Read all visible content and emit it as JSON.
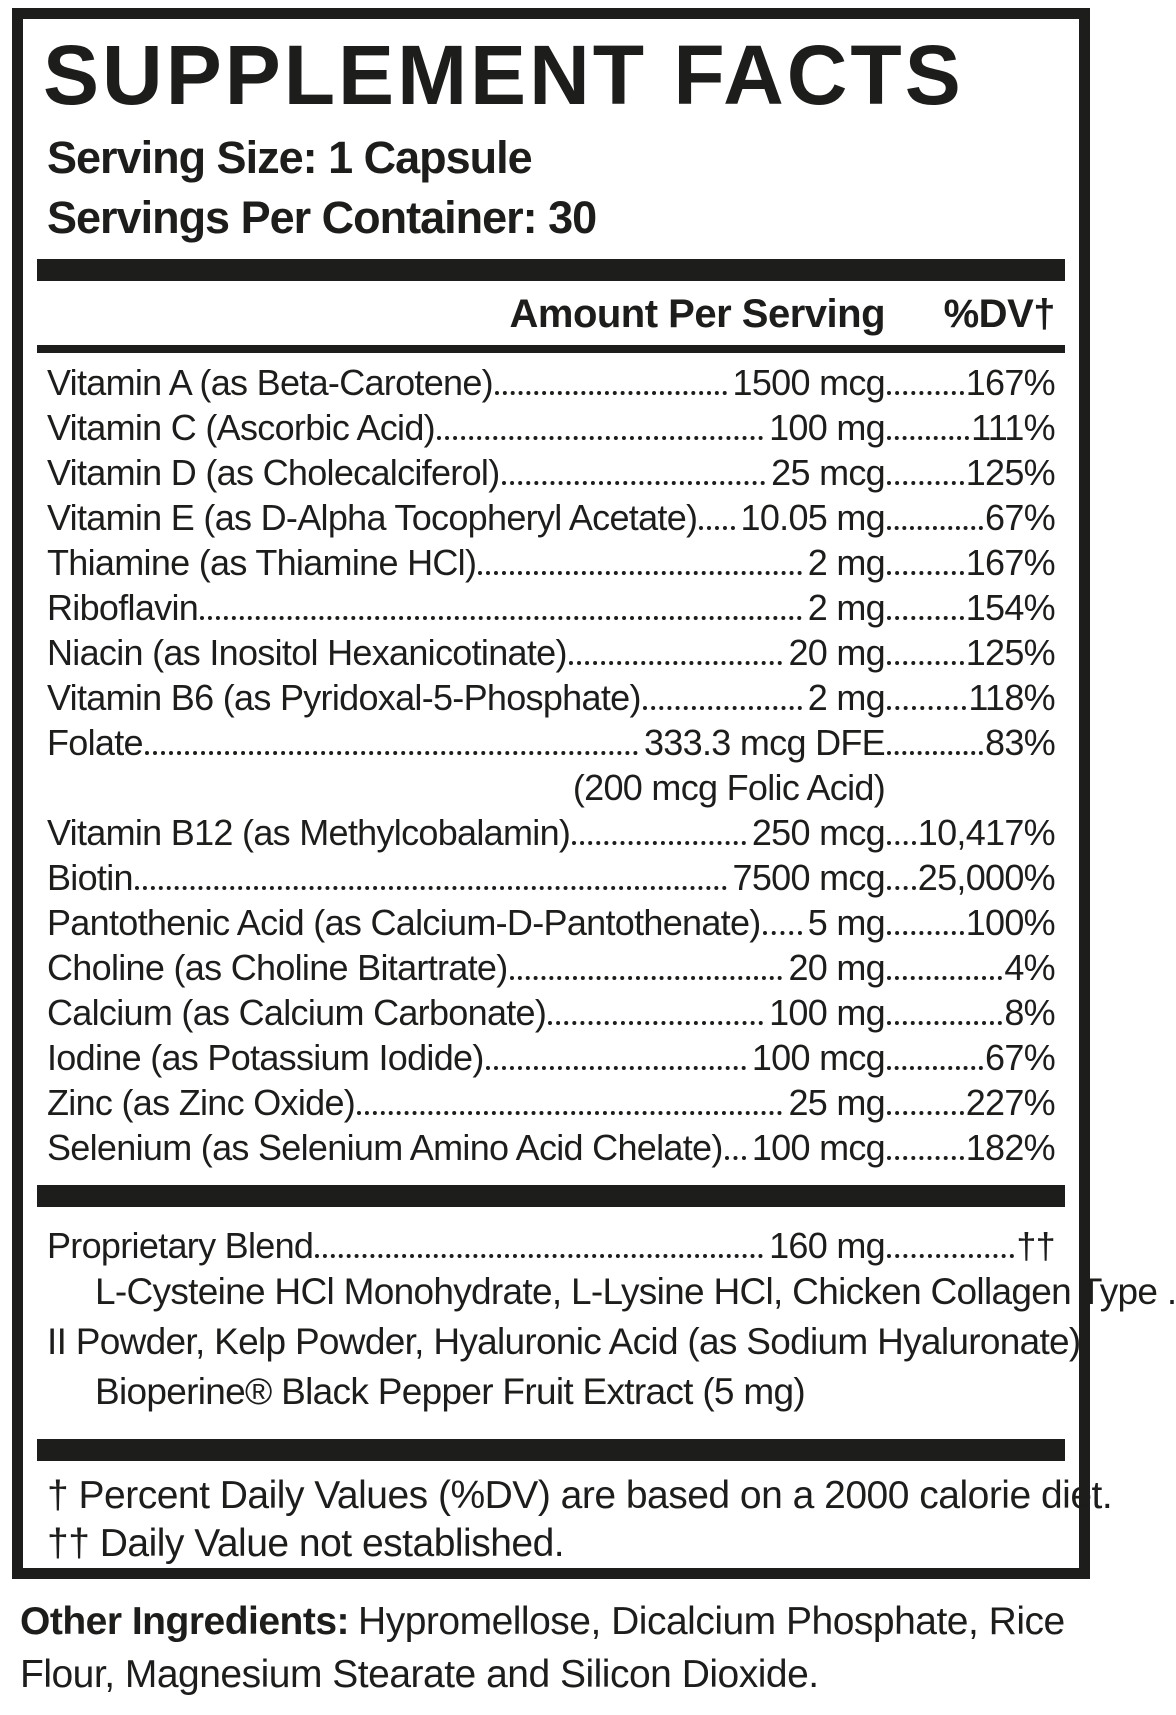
{
  "title": "SUPPLEMENT FACTS",
  "serving": {
    "size_label": "Serving Size: 1 Capsule",
    "per_container_label": "Servings Per Container: 30"
  },
  "columns": {
    "amount": "Amount Per Serving",
    "dv": "%DV†"
  },
  "nutrients": [
    {
      "name": "Vitamin A (as Beta-Carotene)",
      "amount": "1500 mcg",
      "dv": "167%"
    },
    {
      "name": "Vitamin C (Ascorbic Acid)",
      "amount": "100 mg",
      "dv": "111%"
    },
    {
      "name": "Vitamin D (as Cholecalciferol)",
      "amount": "25 mcg",
      "dv": "125%"
    },
    {
      "name": "Vitamin E (as D-Alpha Tocopheryl Acetate)",
      "amount": "10.05 mg",
      "dv": "67%"
    },
    {
      "name": "Thiamine (as Thiamine HCl)",
      "amount": "2 mg",
      "dv": "167%"
    },
    {
      "name": "Riboflavin",
      "amount": "2 mg",
      "dv": "154%"
    },
    {
      "name": "Niacin (as Inositol Hexanicotinate)",
      "amount": "20 mg",
      "dv": "125%"
    },
    {
      "name": "Vitamin B6 (as Pyridoxal-5-Phosphate)",
      "amount": "2 mg",
      "dv": "118%"
    },
    {
      "name": "Folate",
      "amount": "333.3 mcg DFE",
      "dv": "83%",
      "subnote": "(200 mcg Folic Acid)"
    },
    {
      "name": "Vitamin B12 (as Methylcobalamin)",
      "amount": "250 mcg",
      "dv": "10,417%"
    },
    {
      "name": "Biotin",
      "amount": "7500 mcg",
      "dv": "25,000%"
    },
    {
      "name": "Pantothenic Acid (as Calcium-D-Pantothenate)",
      "amount": "5 mg",
      "dv": "100%"
    },
    {
      "name": "Choline (as Choline Bitartrate)",
      "amount": "20 mg",
      "dv": "4%"
    },
    {
      "name": "Calcium (as Calcium Carbonate)",
      "amount": "100 mg",
      "dv": "8%"
    },
    {
      "name": "Iodine (as Potassium Iodide)",
      "amount": "100 mcg",
      "dv": "67%"
    },
    {
      "name": "Zinc (as Zinc Oxide)",
      "amount": "25 mg",
      "dv": "227%"
    },
    {
      "name": "Selenium (as Selenium Amino Acid Chelate)",
      "amount": "100 mcg",
      "dv": "182%"
    }
  ],
  "proprietary": {
    "name": "Proprietary Blend",
    "amount": "160 mg",
    "dv": "††",
    "lines": [
      "L-Cysteine HCl Monohydrate, L-Lysine HCl, Chicken Collagen Type .",
      "II Powder, Kelp Powder, Hyaluronic Acid (as Sodium Hyaluronate),",
      "Bioperine® Black Pepper Fruit Extract (5 mg)"
    ]
  },
  "footnotes": [
    "† Percent Daily Values (%DV) are based on a 2000 calorie diet.",
    "†† Daily Value not established."
  ],
  "other_ingredients": {
    "label": "Other Ingredients:",
    "text": "Hypromellose, Dicalcium Phosphate, Rice Flour, Magnesium Stearate and Silicon Dioxide."
  },
  "colors": {
    "ink": "#1d1d1b",
    "background": "#ffffff"
  }
}
